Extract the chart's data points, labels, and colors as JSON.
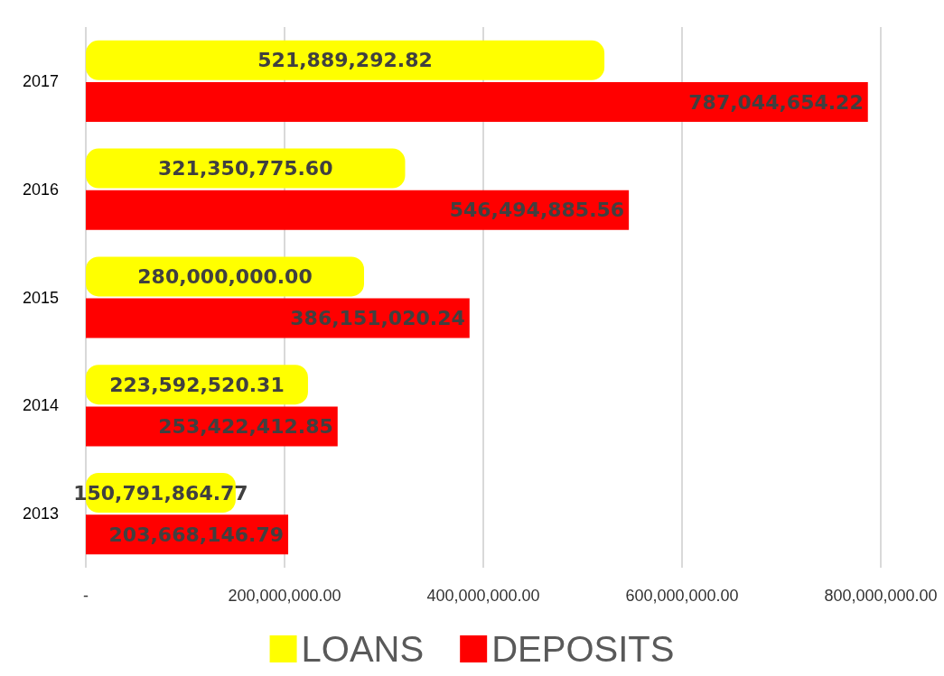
{
  "chart_data": {
    "type": "bar",
    "orientation": "horizontal",
    "categories": [
      "2017",
      "2016",
      "2015",
      "2014",
      "2013"
    ],
    "series": [
      {
        "name": "LOANS",
        "color": "#ffff00",
        "values": [
          521889292.82,
          321350775.6,
          280000000.0,
          223592520.31,
          150791864.77
        ],
        "value_labels": [
          "521,889,292.82",
          "321,350,775.60",
          "280,000,000.00",
          "223,592,520.31",
          "150,791,864.77"
        ]
      },
      {
        "name": "DEPOSITS",
        "color": "#ff0000",
        "values": [
          787044654.22,
          546494885.56,
          386151020.24,
          253422412.85,
          203668146.79
        ],
        "value_labels": [
          "787,044,654.22",
          "546,494,885.56",
          "386,151,020.24",
          "253,422,412.85",
          "203,668,146.79"
        ]
      }
    ],
    "xlim": [
      0,
      800000000
    ],
    "xticks": [
      {
        "value": 0,
        "label": "-"
      },
      {
        "value": 200000000,
        "label": "200,000,000.00"
      },
      {
        "value": 400000000,
        "label": "400,000,000.00"
      },
      {
        "value": 600000000,
        "label": "600,000,000.00"
      },
      {
        "value": 800000000,
        "label": "800,000,000.00"
      }
    ],
    "grid": "x",
    "legend": "bottom"
  }
}
